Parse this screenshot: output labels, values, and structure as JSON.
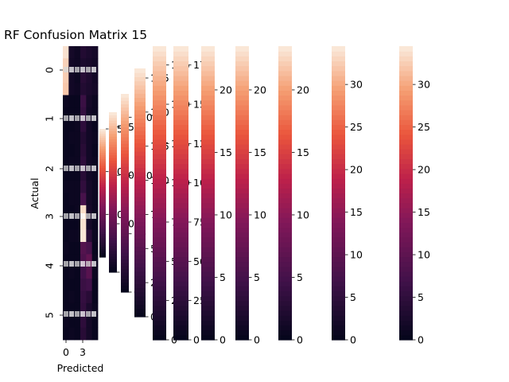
{
  "chart_data": {
    "type": "heatmap",
    "title": "RF Confusion Matrix 15",
    "xlabel": "Predicted",
    "ylabel": "Actual",
    "row_labels": [
      "0",
      "1",
      "2",
      "3",
      "4",
      "5"
    ],
    "x_tick_labels": [
      "0",
      "3"
    ],
    "colormap": "rocket",
    "heatmap_column_colors": [
      0.0,
      0.0,
      0.0,
      0.14,
      0.05,
      0.02
    ],
    "heatmap_rows": 24,
    "heatmap_cells": [
      [
        0.98,
        0.06,
        0.04,
        0.1,
        0.08,
        0.06
      ],
      [
        0.95,
        0.05,
        0.04,
        0.08,
        0.07,
        0.05
      ],
      [
        0.94,
        0.05,
        0.03,
        0.12,
        0.09,
        0.05
      ],
      [
        0.93,
        0.05,
        0.04,
        0.1,
        0.08,
        0.06
      ],
      [
        0.03,
        0.02,
        0.02,
        0.18,
        0.06,
        0.03
      ],
      [
        0.02,
        0.02,
        0.02,
        0.16,
        0.05,
        0.03
      ],
      [
        0.02,
        0.02,
        0.03,
        0.14,
        0.05,
        0.02
      ],
      [
        0.02,
        0.03,
        0.03,
        0.1,
        0.05,
        0.03
      ],
      [
        0.02,
        0.02,
        0.03,
        0.12,
        0.05,
        0.02
      ],
      [
        0.02,
        0.03,
        0.03,
        0.14,
        0.05,
        0.03
      ],
      [
        0.02,
        0.02,
        0.02,
        0.12,
        0.05,
        0.03
      ],
      [
        0.03,
        0.03,
        0.03,
        0.15,
        0.06,
        0.03
      ],
      [
        0.02,
        0.03,
        0.03,
        0.22,
        0.06,
        0.03
      ],
      [
        0.02,
        0.02,
        0.03,
        0.97,
        0.07,
        0.03
      ],
      [
        0.02,
        0.02,
        0.02,
        0.98,
        0.06,
        0.02
      ],
      [
        0.02,
        0.03,
        0.03,
        0.99,
        0.12,
        0.03
      ],
      [
        0.03,
        0.02,
        0.02,
        0.26,
        0.22,
        0.02
      ],
      [
        0.02,
        0.02,
        0.02,
        0.24,
        0.3,
        0.03
      ],
      [
        0.02,
        0.03,
        0.02,
        0.2,
        0.27,
        0.03
      ],
      [
        0.02,
        0.02,
        0.02,
        0.18,
        0.2,
        0.02
      ],
      [
        0.02,
        0.03,
        0.02,
        0.16,
        0.12,
        0.02
      ],
      [
        0.02,
        0.02,
        0.02,
        0.15,
        0.08,
        0.03
      ],
      [
        0.03,
        0.02,
        0.02,
        0.14,
        0.06,
        0.02
      ],
      [
        0.02,
        0.03,
        0.02,
        0.12,
        0.06,
        0.02
      ]
    ],
    "colorbars": [
      {
        "max": 150,
        "ticks": [
          50,
          100,
          150
        ]
      },
      {
        "max": 165,
        "ticks": [
          0,
          50,
          100,
          150
        ]
      },
      {
        "max": 170,
        "ticks": [
          0,
          50,
          100,
          150
        ]
      },
      {
        "max": 182,
        "ticks": [
          0,
          25,
          50,
          75,
          100,
          125,
          150,
          175
        ]
      },
      {
        "max": 187,
        "ticks": [
          0,
          25,
          50,
          75,
          100,
          125,
          150,
          175
        ]
      },
      {
        "max": 187,
        "ticks": [
          0,
          25,
          50,
          75,
          100,
          125,
          150,
          175
        ]
      },
      {
        "max": 23.5,
        "ticks": [
          0,
          5,
          10,
          15,
          20
        ]
      },
      {
        "max": 23.5,
        "ticks": [
          0,
          5,
          10,
          15,
          20
        ]
      },
      {
        "max": 23.5,
        "ticks": [
          0,
          5,
          10,
          15,
          20
        ]
      },
      {
        "max": 34.5,
        "ticks": [
          0,
          5,
          10,
          15,
          20,
          25,
          30
        ]
      },
      {
        "max": 34.5,
        "ticks": [
          0,
          5,
          10,
          15,
          20,
          25,
          30
        ]
      },
      {
        "max": 34.5,
        "ticks": [
          0,
          5,
          10,
          15,
          20,
          25,
          30
        ]
      }
    ]
  }
}
